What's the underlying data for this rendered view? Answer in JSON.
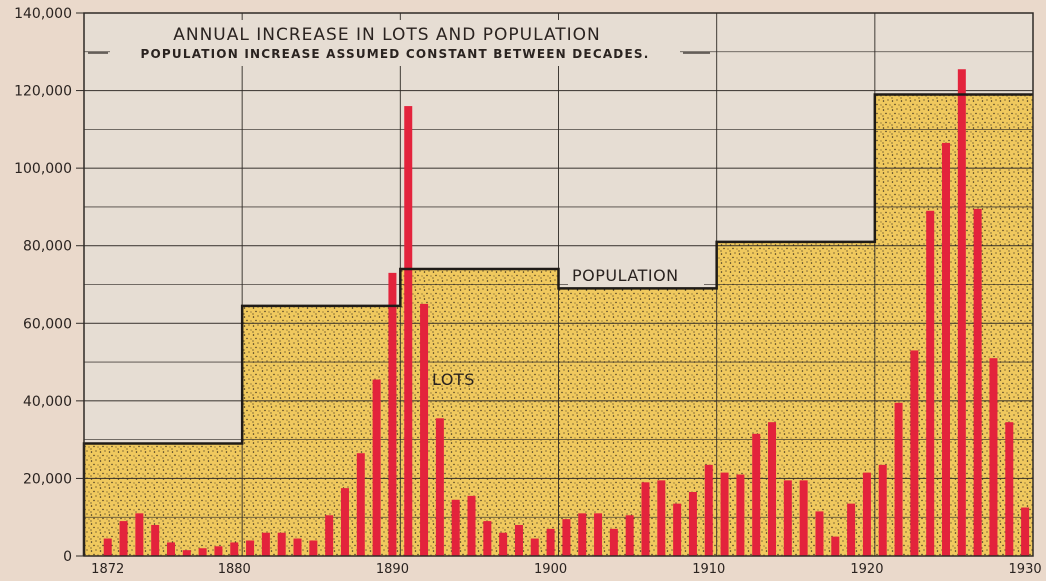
{
  "chart_data": {
    "type": "bar",
    "title": "ANNUAL INCREASE IN LOTS AND POPULATION",
    "subtitle": "POPULATION INCREASE ASSUMED CONSTANT BETWEEN DECADES.",
    "xlabel": "",
    "ylabel": "",
    "ylim": [
      0,
      140000
    ],
    "xlim": [
      1870.5,
      1930.5
    ],
    "grid": true,
    "y_ticks": [
      {
        "value": 0,
        "label": "0"
      },
      {
        "value": 20000,
        "label": "20,000"
      },
      {
        "value": 40000,
        "label": "40,000"
      },
      {
        "value": 60000,
        "label": "60,000"
      },
      {
        "value": 80000,
        "label": "80,000"
      },
      {
        "value": 100000,
        "label": "100,000"
      },
      {
        "value": 120000,
        "label": "120,000"
      },
      {
        "value": 140000,
        "label": "140,000"
      }
    ],
    "x_ticks": [
      {
        "value": 1872,
        "label": "1872"
      },
      {
        "value": 1880,
        "label": "1880"
      },
      {
        "value": 1890,
        "label": "1890"
      },
      {
        "value": 1900,
        "label": "1900"
      },
      {
        "value": 1910,
        "label": "1910"
      },
      {
        "value": 1920,
        "label": "1920"
      },
      {
        "value": 1930,
        "label": "1930"
      }
    ],
    "annotations": {
      "population": "POPULATION",
      "lots": "LOTS"
    },
    "population": [
      {
        "start": 1870.5,
        "end": 1880.5,
        "value": 29000
      },
      {
        "start": 1880.5,
        "end": 1890.5,
        "value": 64500
      },
      {
        "start": 1890.5,
        "end": 1900.5,
        "value": 74000
      },
      {
        "start": 1900.5,
        "end": 1910.5,
        "value": 69000
      },
      {
        "start": 1910.5,
        "end": 1920.5,
        "value": 81000
      },
      {
        "start": 1920.5,
        "end": 1930.5,
        "value": 119000
      }
    ],
    "lots": {
      "x": [
        1872,
        1873,
        1874,
        1875,
        1876,
        1877,
        1878,
        1879,
        1880,
        1881,
        1882,
        1883,
        1884,
        1885,
        1886,
        1887,
        1888,
        1889,
        1890,
        1891,
        1892,
        1893,
        1894,
        1895,
        1896,
        1897,
        1898,
        1899,
        1900,
        1901,
        1902,
        1903,
        1904,
        1905,
        1906,
        1907,
        1908,
        1909,
        1910,
        1911,
        1912,
        1913,
        1914,
        1915,
        1916,
        1917,
        1918,
        1919,
        1920,
        1921,
        1922,
        1923,
        1924,
        1925,
        1926,
        1927,
        1928,
        1929,
        1930
      ],
      "values": [
        4500,
        9000,
        11000,
        8000,
        3500,
        1500,
        2000,
        2500,
        3500,
        4000,
        6000,
        6000,
        4500,
        4000,
        10500,
        17500,
        26500,
        45500,
        73000,
        116000,
        65000,
        35500,
        14500,
        15500,
        9000,
        6000,
        8000,
        4500,
        7000,
        9500,
        11000,
        11000,
        7000,
        10500,
        19000,
        19500,
        13500,
        16500,
        23500,
        21500,
        21000,
        31500,
        34500,
        19500,
        19500,
        11500,
        5000,
        13500,
        21500,
        23500,
        39500,
        53000,
        89000,
        106500,
        125500,
        89500,
        51000,
        34500,
        12500
      ]
    },
    "colors": {
      "background": "#ead9cb",
      "plot_background": "#e6ddd3",
      "population_fill": "#f0c95e",
      "population_line": "#1f1b17",
      "lots_bar": "#e3233c",
      "grid": "#2f2a26"
    }
  }
}
